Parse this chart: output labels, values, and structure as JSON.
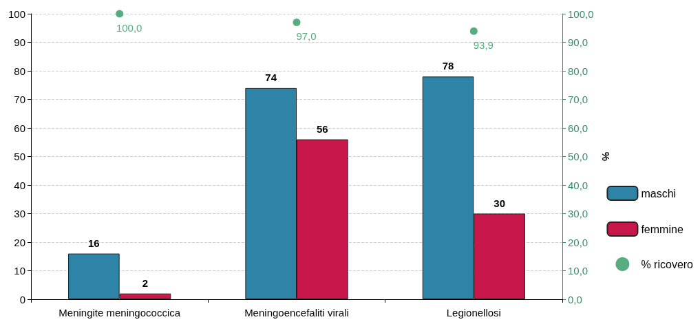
{
  "chart_data": {
    "type": "bar",
    "categories": [
      "Meningite meningococcica",
      "Meningoencefaliti virali",
      "Legionellosi"
    ],
    "series": [
      {
        "name": "maschi",
        "color": "#2e84a6",
        "values": [
          16,
          74,
          78
        ],
        "value_labels": [
          "16",
          "74",
          "78"
        ]
      },
      {
        "name": "femmine",
        "color": "#c8174a",
        "values": [
          2,
          56,
          30
        ],
        "value_labels": [
          "2",
          "56",
          "30"
        ]
      },
      {
        "name": "% ricovero",
        "type": "scatter",
        "axis": "y2",
        "color": "#2e9960",
        "values": [
          100,
          97,
          93.9
        ],
        "value_labels": [
          "100,0",
          "97,0",
          "93,9"
        ]
      }
    ],
    "y2label": "%",
    "ylim": [
      0,
      100
    ],
    "yticks": [
      0,
      10,
      20,
      30,
      40,
      50,
      60,
      70,
      80,
      90,
      100
    ],
    "y2lim": [
      0,
      100
    ],
    "y2ticks": [
      {
        "value": 0,
        "label": "0,0"
      },
      {
        "value": 10,
        "label": "10,0"
      },
      {
        "value": 20,
        "label": "20,0"
      },
      {
        "value": 30,
        "label": "30,0"
      },
      {
        "value": 40,
        "label": "40,0"
      },
      {
        "value": 50,
        "label": "50,0"
      },
      {
        "value": 60,
        "label": "60,0"
      },
      {
        "value": 70,
        "label": "70,0"
      },
      {
        "value": 80,
        "label": "80,0"
      },
      {
        "value": 90,
        "label": "90,0"
      },
      {
        "value": 100,
        "label": "100,0"
      }
    ],
    "grid": "y",
    "legend": "right",
    "marker": "circle"
  }
}
